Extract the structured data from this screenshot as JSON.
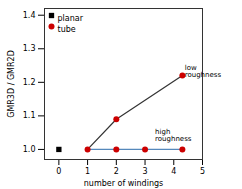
{
  "chart_data": {
    "type": "line",
    "xlabel": "number of windings",
    "ylabel": "GMR3D / GMR2D",
    "xlim": [
      -0.5,
      5.0
    ],
    "ylim": [
      0.97,
      1.42
    ],
    "xticks": [
      0,
      1,
      2,
      3,
      4,
      5
    ],
    "yticks": [
      {
        "value": 1.0,
        "label": "1.0"
      },
      {
        "value": 1.1,
        "label": "1.1"
      },
      {
        "value": 1.2,
        "label": "1.2"
      },
      {
        "value": 1.3,
        "label": "1.3"
      },
      {
        "value": 1.4,
        "label": "1.4"
      }
    ],
    "legend": "upper left",
    "series": [
      {
        "type": "line",
        "color": "#333333",
        "x": [
          1,
          2,
          4.3
        ],
        "values": [
          1.0,
          1.09,
          1.22
        ]
      },
      {
        "type": "line",
        "color": "#5588bb",
        "x": [
          1,
          2,
          3,
          4.3
        ],
        "values": [
          1.0,
          1.0,
          1.0,
          1.0
        ]
      },
      {
        "name": "planar",
        "type": "scatter",
        "marker": "square",
        "color": "#000000",
        "x": [
          0
        ],
        "values": [
          1.0
        ]
      },
      {
        "name": "tube",
        "type": "scatter",
        "marker": "circle",
        "color": "#cc0000",
        "x": [
          1,
          2,
          4.3,
          2,
          3,
          4.3
        ],
        "values": [
          1.0,
          1.09,
          1.22,
          1.0,
          1.0,
          1.0
        ]
      }
    ],
    "annotations": [
      {
        "text": "low\nroughness",
        "x": 4.38,
        "y": 1.215
      },
      {
        "text": "high\nroughness",
        "x": 3.35,
        "y": 1.025
      }
    ]
  }
}
